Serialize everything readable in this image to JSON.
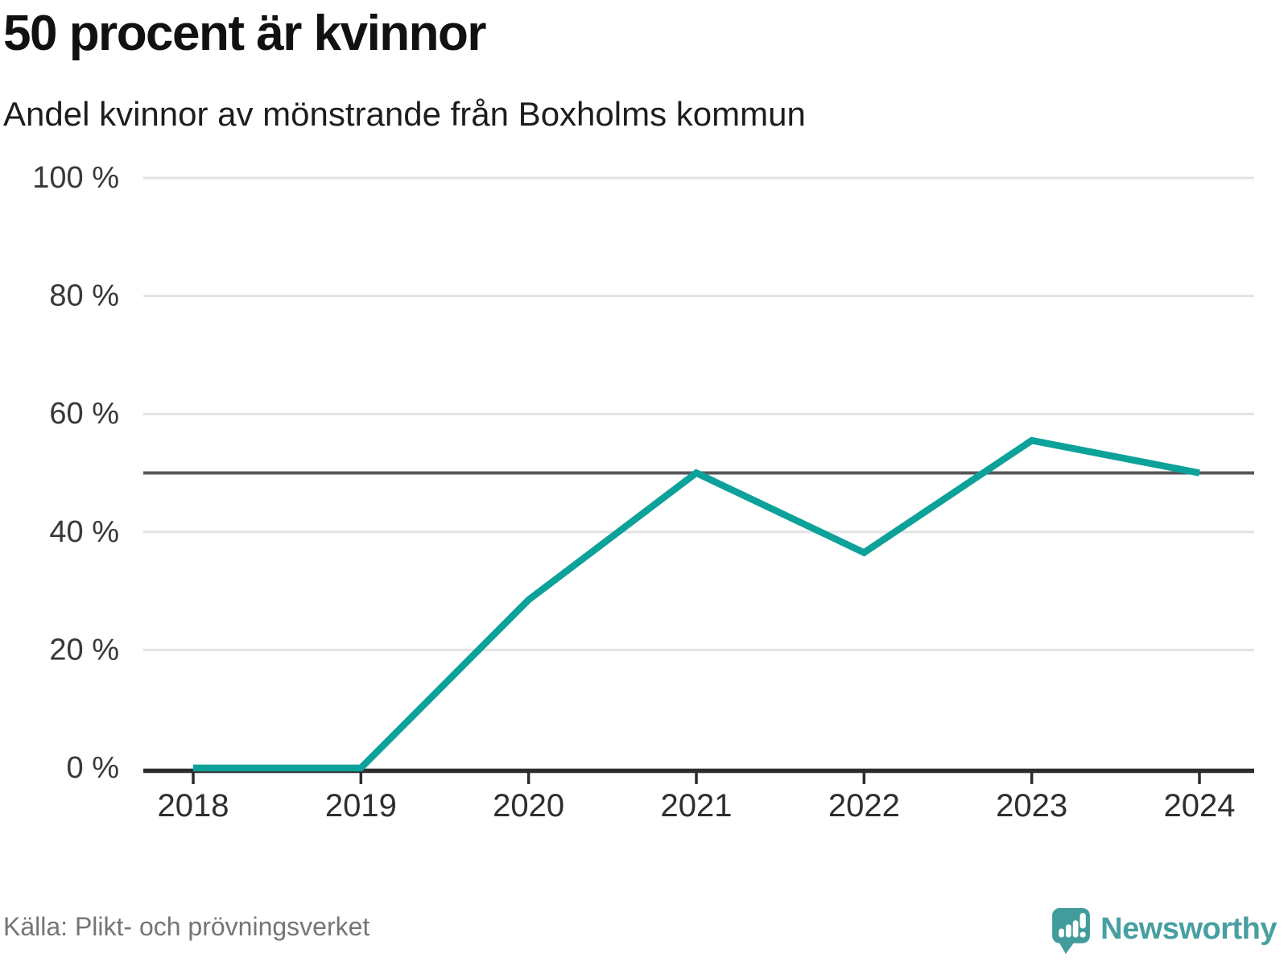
{
  "header": {
    "title": "50 procent är kvinnor",
    "subtitle": "Andel kvinnor av mönstrande från Boxholms kommun"
  },
  "chart_data": {
    "type": "line",
    "title": "50 procent är kvinnor",
    "subtitle": "Andel kvinnor av mönstrande från Boxholms kommun",
    "x": [
      "2018",
      "2019",
      "2020",
      "2021",
      "2022",
      "2023",
      "2024"
    ],
    "series": [
      {
        "name": "Andel kvinnor av mönstrande",
        "values": [
          0,
          0,
          28.5,
          50,
          36.5,
          55.5,
          50
        ]
      }
    ],
    "unit": "%",
    "ylim": [
      0,
      100
    ],
    "yticks": [
      0,
      20,
      40,
      60,
      80,
      100
    ],
    "ytick_labels": [
      "0 %",
      "20 %",
      "40 %",
      "60 %",
      "80 %",
      "100 %"
    ],
    "xlabel": "",
    "ylabel": "",
    "grid": true,
    "legend": "none",
    "reference_line": {
      "value": 50
    },
    "colors": {
      "line": "#0ca29a",
      "gridline": "#e3e3e3",
      "reference_line": "#57575a",
      "axis": "#2d2d30",
      "tick_label": "#38383a"
    }
  },
  "footer": {
    "source": "Källa: Plikt- och prövningsverket",
    "brand": "Newsworthy",
    "brand_color": "#489fa0",
    "icon": "newsworthy-bar-chart-speech-bubble"
  }
}
